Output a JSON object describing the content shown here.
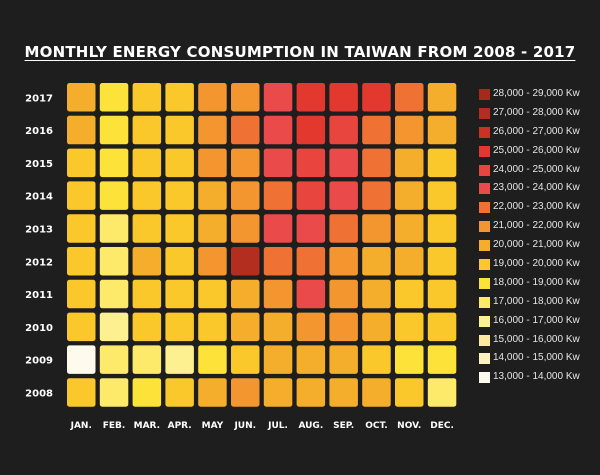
{
  "chart_data": {
    "type": "heatmap",
    "title": "MONTHLY ENERGY CONSUMPTION IN TAIWAN FROM 2008 - 2017",
    "x_categories": [
      "JAN.",
      "FEB.",
      "MAR.",
      "APR.",
      "MAY",
      "JUN.",
      "JUL.",
      "AUG.",
      "SEP.",
      "OCT.",
      "NOV.",
      "DEC."
    ],
    "y_categories": [
      "2017",
      "2016",
      "2015",
      "2014",
      "2013",
      "2012",
      "2011",
      "2010",
      "2009",
      "2008"
    ],
    "unit": "Kw",
    "values": [
      [
        20500,
        18500,
        19500,
        19500,
        21500,
        21500,
        23500,
        25500,
        25500,
        25500,
        22500,
        20500
      ],
      [
        20500,
        18500,
        19500,
        19500,
        21500,
        22500,
        23500,
        25500,
        24500,
        22500,
        21500,
        20500
      ],
      [
        19500,
        18500,
        19500,
        19500,
        21500,
        21500,
        23500,
        24500,
        23500,
        22500,
        20500,
        19500
      ],
      [
        19500,
        18500,
        19500,
        19500,
        20500,
        21500,
        22500,
        24500,
        23500,
        22500,
        20500,
        19500
      ],
      [
        19500,
        17500,
        19500,
        19500,
        20500,
        21500,
        23500,
        23500,
        22500,
        21500,
        20500,
        19500
      ],
      [
        19500,
        17500,
        20500,
        19500,
        21500,
        27500,
        22500,
        22500,
        21500,
        20500,
        20500,
        19500
      ],
      [
        19500,
        17500,
        19500,
        19500,
        19500,
        20500,
        21500,
        23500,
        21500,
        20500,
        19500,
        19500
      ],
      [
        19500,
        16500,
        19500,
        19500,
        19500,
        20500,
        20500,
        21500,
        21500,
        20500,
        19500,
        19500
      ],
      [
        13500,
        17500,
        17500,
        16500,
        18500,
        19500,
        20500,
        20500,
        20500,
        19500,
        18500,
        18500
      ],
      [
        19500,
        17500,
        18500,
        19500,
        20500,
        21500,
        20500,
        20500,
        20500,
        20500,
        19500,
        17500
      ]
    ],
    "legend": [
      {
        "label": "28,000 - 29,000 Kw",
        "color": "#a52a1c"
      },
      {
        "label": "27,000 - 28,000 Kw",
        "color": "#b32e1f"
      },
      {
        "label": "26,000 - 27,000 Kw",
        "color": "#c93225"
      },
      {
        "label": "25,000 - 26,000 Kw",
        "color": "#e3382d"
      },
      {
        "label": "24,000 - 25,000 Kw",
        "color": "#e8453e"
      },
      {
        "label": "23,000 - 24,000 Kw",
        "color": "#ea4a4a"
      },
      {
        "label": "22,000 - 23,000 Kw",
        "color": "#ef7133"
      },
      {
        "label": "21,000 - 22,000 Kw",
        "color": "#f3962f"
      },
      {
        "label": "20,000 - 21,000 Kw",
        "color": "#f5ad2c"
      },
      {
        "label": "19,000 - 20,000 Kw",
        "color": "#fbc82b"
      },
      {
        "label": "18,000 - 19,000 Kw",
        "color": "#fde339"
      },
      {
        "label": "17,000 - 18,000 Kw",
        "color": "#fde96a"
      },
      {
        "label": "16,000 - 17,000 Kw",
        "color": "#fdf091"
      },
      {
        "label": "15,000 - 16,000 Kw",
        "color": "#fde9a0"
      },
      {
        "label": "14,000 - 15,000 Kw",
        "color": "#fdf3c0"
      },
      {
        "label": "13,000 - 14,000 Kw",
        "color": "#fffbec"
      }
    ]
  }
}
